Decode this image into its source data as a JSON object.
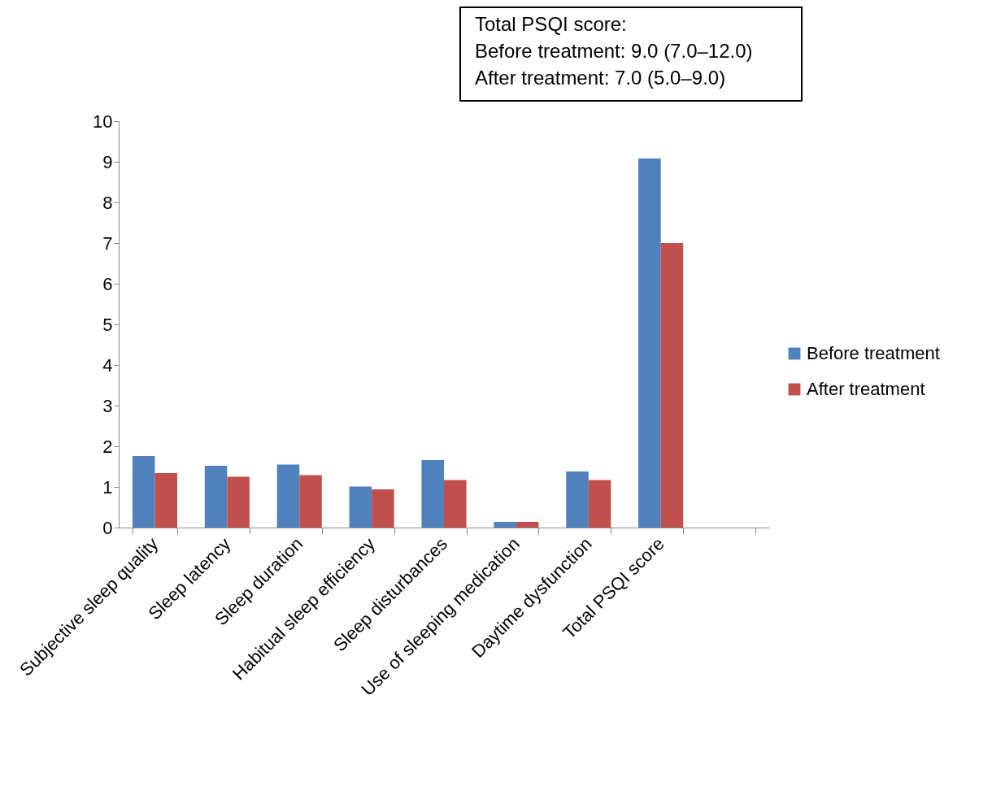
{
  "chart_data": {
    "type": "bar",
    "categories": [
      "Subjective sleep quality",
      "Sleep latency",
      "Sleep duration",
      "Habitual sleep efficiency",
      "Sleep disturbances",
      "Use of sleeping medication",
      "Daytime dysfunction",
      "Total PSQI score",
      null
    ],
    "series": [
      {
        "name": "Before treatment",
        "color": "#4f81bd",
        "values": [
          1.76,
          1.52,
          1.55,
          1.01,
          1.66,
          0.14,
          1.38,
          9.08,
          null
        ]
      },
      {
        "name": "After treatment",
        "color": "#c0504d",
        "values": [
          1.34,
          1.25,
          1.29,
          0.94,
          1.17,
          0.14,
          1.17,
          7.0,
          null
        ]
      }
    ],
    "ylim": [
      0,
      10
    ],
    "yticks": [
      0,
      1,
      2,
      3,
      4,
      5,
      6,
      7,
      8,
      9,
      10
    ],
    "grid": false,
    "legend": "right",
    "annotations": [
      "Total PSQI score:\nBefore treatment: 9.0 (7.0–12.0)\nAfter treatment: 7.0 (5.0–9.0)"
    ]
  }
}
